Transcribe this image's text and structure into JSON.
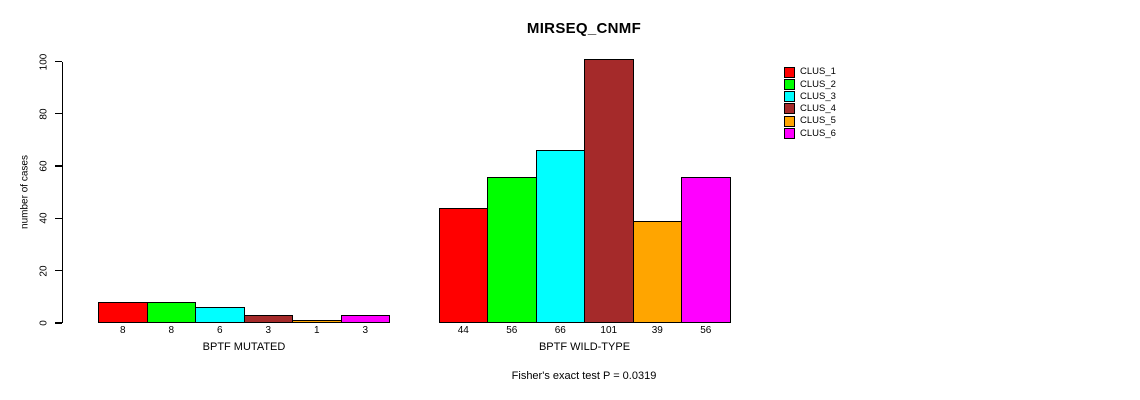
{
  "chart_data": {
    "type": "bar",
    "title": "MIRSEQ_CNMF",
    "ylabel": "number of cases",
    "xlabel": "",
    "ylim": [
      0,
      105
    ],
    "yticks": [
      0,
      20,
      40,
      60,
      80,
      100
    ],
    "grid": false,
    "legend_position": "upper-right",
    "categories": [
      "BPTF MUTATED",
      "BPTF WILD-TYPE"
    ],
    "series": [
      {
        "name": "CLUS_1",
        "color": "#FF0000",
        "values": [
          8,
          44
        ]
      },
      {
        "name": "CLUS_2",
        "color": "#00FF00",
        "values": [
          8,
          56
        ]
      },
      {
        "name": "CLUS_3",
        "color": "#00FFFF",
        "values": [
          6,
          66
        ]
      },
      {
        "name": "CLUS_4",
        "color": "#A52A2A",
        "values": [
          3,
          101
        ]
      },
      {
        "name": "CLUS_5",
        "color": "#FFA500",
        "values": [
          1,
          39
        ]
      },
      {
        "name": "CLUS_6",
        "color": "#FF00FF",
        "values": [
          3,
          56
        ]
      }
    ],
    "bar_value_labels": [
      [
        8,
        8,
        6,
        3,
        1,
        3
      ],
      [
        44,
        56,
        66,
        101,
        39,
        56
      ]
    ],
    "footnote": "Fisher's exact test P = 0.0319",
    "axis_color": "#000000",
    "background_color": "#FFFFFF"
  }
}
